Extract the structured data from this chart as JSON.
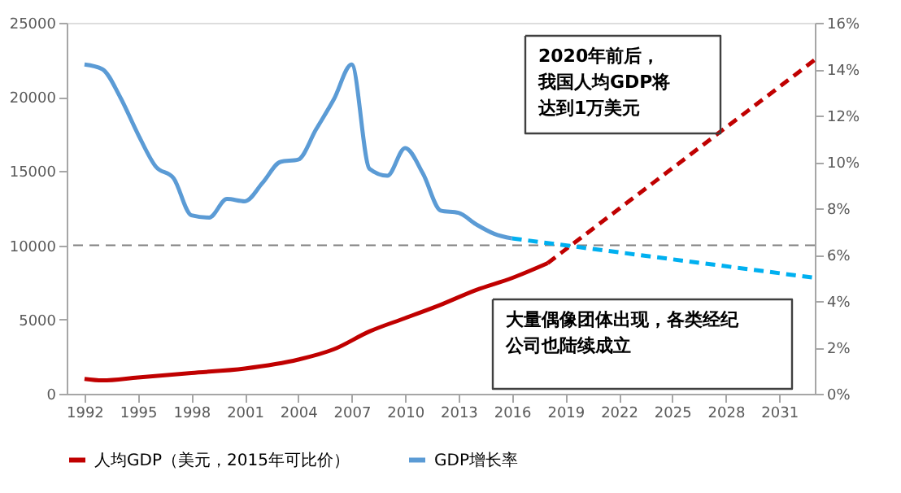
{
  "chart_data": {
    "type": "line",
    "xlim": [
      1991,
      2033
    ],
    "xticks": [
      1992,
      1995,
      1998,
      2001,
      2004,
      2007,
      2010,
      2013,
      2016,
      2019,
      2022,
      2025,
      2028,
      2031
    ],
    "ylim": [
      0,
      25000
    ],
    "yticks": [
      0,
      5000,
      10000,
      15000,
      20000,
      25000
    ],
    "y2lim": [
      0,
      16
    ],
    "y2ticks": [
      {
        "value": 0,
        "label": "0%"
      },
      {
        "value": 2,
        "label": "2%"
      },
      {
        "value": 4,
        "label": "4%"
      },
      {
        "value": 6,
        "label": "6%"
      },
      {
        "value": 8,
        "label": "8%"
      },
      {
        "value": 10,
        "label": "10%"
      },
      {
        "value": 12,
        "label": "12%"
      },
      {
        "value": 14,
        "label": "14%"
      },
      {
        "value": 16,
        "label": "16%"
      }
    ],
    "series": [
      {
        "name": "人均GDP（美元，2015年可比价）",
        "color": "#c00000",
        "line_style": "solid",
        "x": [
          1992,
          1993,
          1995,
          1998,
          2001,
          2004,
          2006,
          2008,
          2010,
          2012,
          2014,
          2016,
          2018
        ],
        "values": [
          1000,
          900,
          1100,
          1400,
          1700,
          2300,
          3000,
          4200,
          5100,
          6000,
          7000,
          7800,
          8800
        ]
      },
      {
        "color": "#c00000",
        "line_style": "dashed",
        "x": [
          2018,
          2033
        ],
        "values": [
          8800,
          22500
        ]
      },
      {
        "name": "GDP增长率",
        "color": "#5b9bd5",
        "axis": "y2",
        "line_style": "solid",
        "x": [
          1992,
          1993,
          1994,
          1995,
          1996,
          1997,
          1998,
          1999,
          2000,
          2001,
          2002,
          2003,
          2004,
          2005,
          2006,
          2007,
          2008,
          2009,
          2010,
          2011,
          2012,
          2013,
          2014,
          2015,
          2016
        ],
        "values": [
          14.2,
          14.0,
          12.8,
          11.2,
          9.8,
          9.3,
          7.7,
          7.6,
          8.4,
          8.3,
          9.1,
          10.0,
          10.1,
          11.4,
          12.7,
          14.2,
          9.7,
          9.4,
          10.6,
          9.5,
          7.9,
          7.8,
          7.3,
          6.9,
          6.7
        ]
      },
      {
        "color": "#00b0f0",
        "axis": "y2",
        "line_style": "dashed",
        "x": [
          2016,
          2033
        ],
        "values": [
          6.7,
          5.0
        ]
      }
    ],
    "ref_lines": [
      {
        "axis": "y",
        "value": 10000,
        "color": "#808080",
        "line_style": "dashed"
      }
    ],
    "annotations": [
      "2020年前后，我国人均GDP将达到1万美元",
      "大量偶像团体出现，各类经纪公司也陆续成立"
    ],
    "legend": "bottom",
    "grid": false
  }
}
